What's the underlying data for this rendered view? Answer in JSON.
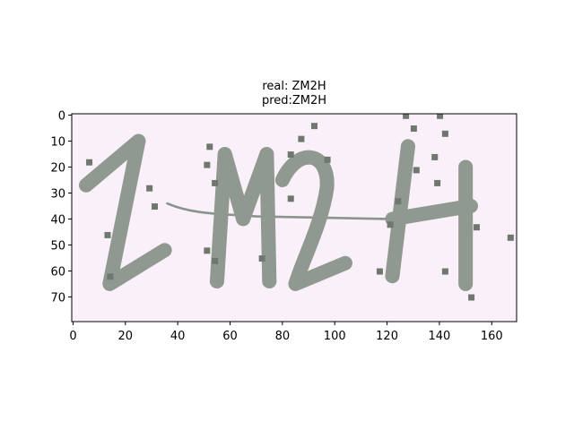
{
  "chart_data": {
    "type": "image",
    "title": [
      "real: ZM2H",
      "pred:ZM2H"
    ],
    "xlim": [
      -0.5,
      169.5
    ],
    "xticks": [
      0,
      20,
      40,
      60,
      80,
      100,
      120,
      140,
      160
    ],
    "ylim": [
      79.5,
      -0.5
    ],
    "yticks": [
      0,
      10,
      20,
      30,
      40,
      50,
      60,
      70
    ]
  }
}
